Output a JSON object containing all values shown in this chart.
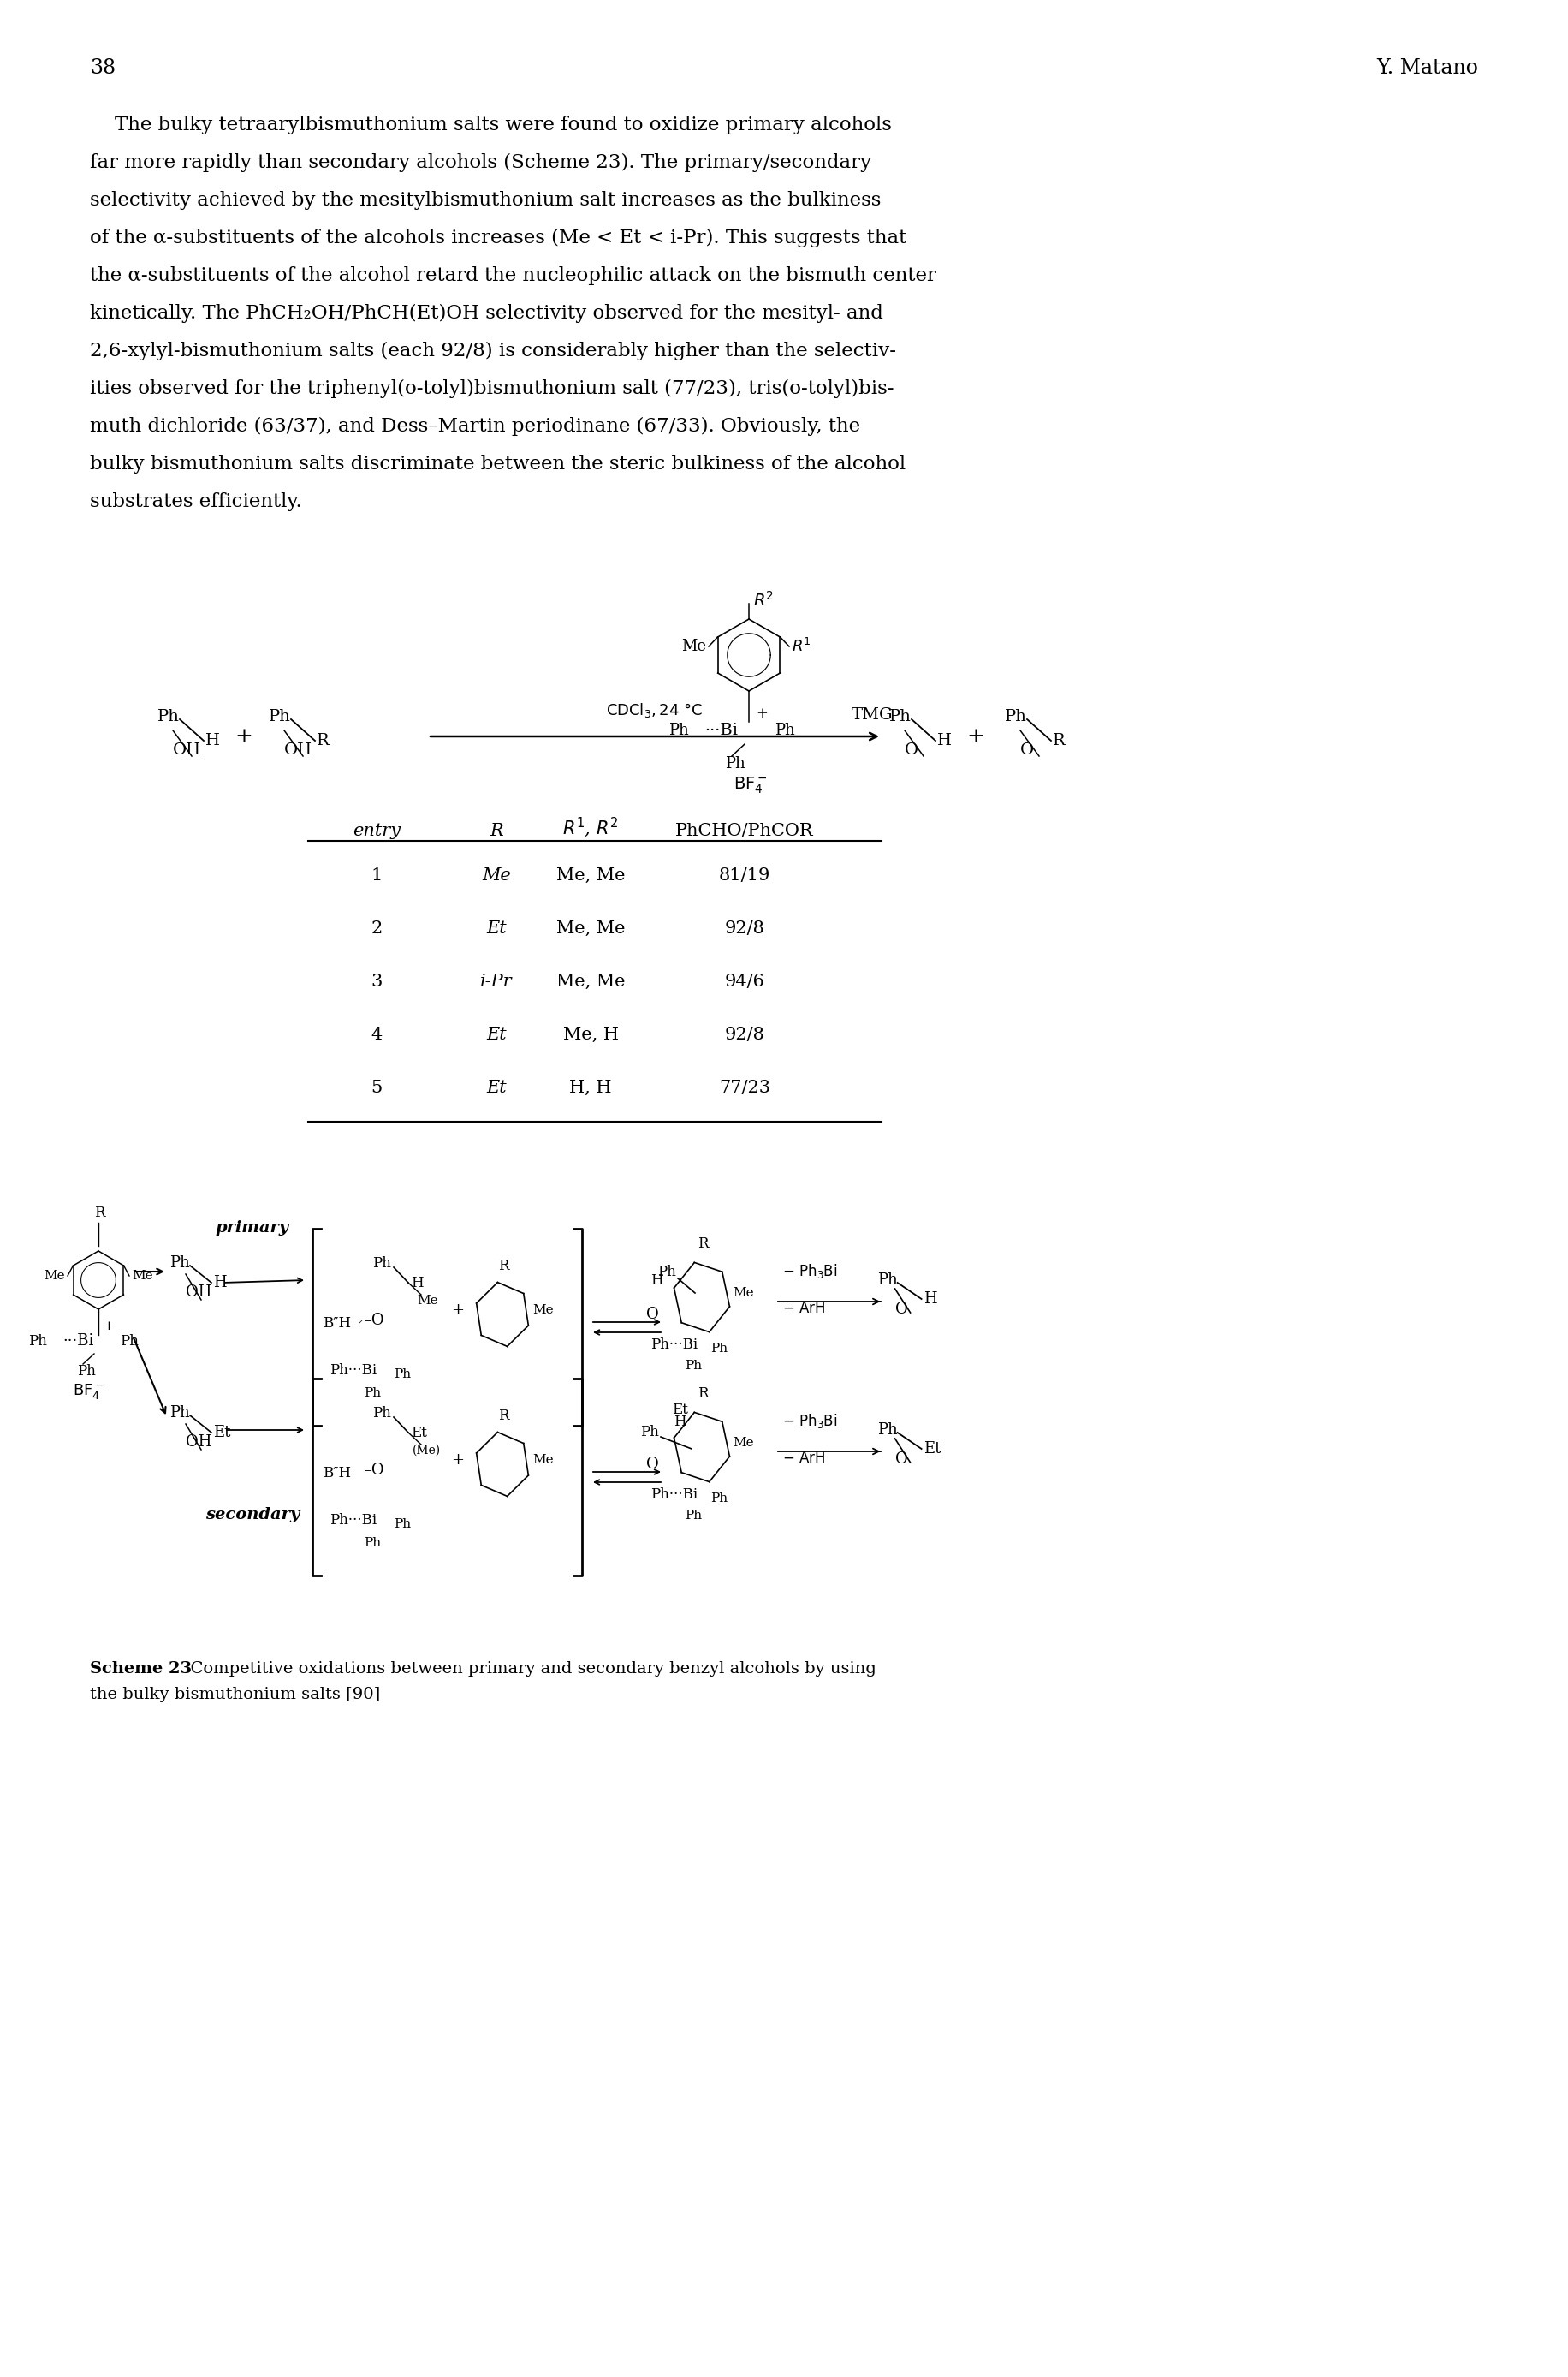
{
  "page_number": "38",
  "author": "Y. Matano",
  "body_lines": [
    "    The bulky tetraarylbismuthonium salts were found to oxidize primary alcohols",
    "far more rapidly than secondary alcohols (Scheme 23). The primary/secondary",
    "selectivity achieved by the mesitylbismuthonium salt increases as the bulkiness",
    "of the α-substituents of the alcohols increases (Me < Et < i-Pr). This suggests that",
    "the α-substituents of the alcohol retard the nucleophilic attack on the bismuth center",
    "kinetically. The PhCH₂OH/PhCH(Et)OH selectivity observed for the mesityl- and",
    "2,6-xylyl-bismuthonium salts (each 92/8) is considerably higher than the selectiv-",
    "ities observed for the triphenyl(o-tolyl)bismuthonium salt (77/23), tris(o-tolyl)bis-",
    "muth dichloride (63/37), and Dess–Martin periodinane (67/33). Obviously, the",
    "bulky bismuthonium salts discriminate between the steric bulkiness of the alcohol",
    "substrates efficiently."
  ],
  "table_data": [
    [
      "1",
      "Me",
      "Me, Me",
      "81/19"
    ],
    [
      "2",
      "Et",
      "Me, Me",
      "92/8"
    ],
    [
      "3",
      "i-Pr",
      "Me, Me",
      "94/6"
    ],
    [
      "4",
      "Et",
      "Me, H",
      "92/8"
    ],
    [
      "5",
      "Et",
      "H, H",
      "77/23"
    ]
  ],
  "bg_color": "#ffffff",
  "text_color": "#000000"
}
